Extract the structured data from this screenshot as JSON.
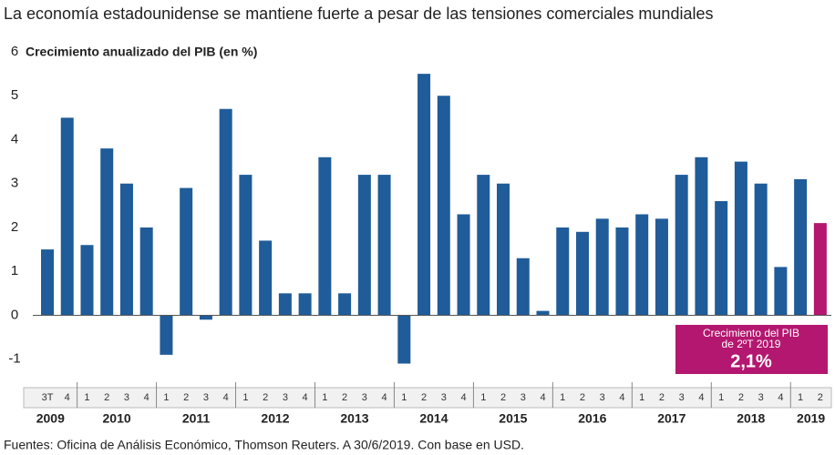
{
  "chart_data": {
    "type": "bar",
    "title": "La economía estadounidense se mantiene fuerte a pesar de las tensiones comerciales mundiales",
    "y_label": "Crecimiento anualizado del PIB (en %)",
    "groups": [
      {
        "label": "2009",
        "quarters": [
          "3T",
          "4"
        ]
      },
      {
        "label": "2010",
        "quarters": [
          "1",
          "2",
          "3",
          "4"
        ]
      },
      {
        "label": "2011",
        "quarters": [
          "1",
          "2",
          "3",
          "4"
        ]
      },
      {
        "label": "2012",
        "quarters": [
          "1",
          "2",
          "3",
          "4"
        ]
      },
      {
        "label": "2013",
        "quarters": [
          "1",
          "2",
          "3",
          "4"
        ]
      },
      {
        "label": "2014",
        "quarters": [
          "1",
          "2",
          "3",
          "4"
        ]
      },
      {
        "label": "2015",
        "quarters": [
          "1",
          "2",
          "3",
          "4"
        ]
      },
      {
        "label": "2016",
        "quarters": [
          "1",
          "2",
          "3",
          "4"
        ]
      },
      {
        "label": "2017",
        "quarters": [
          "1",
          "2",
          "3",
          "4"
        ]
      },
      {
        "label": "2018",
        "quarters": [
          "1",
          "2",
          "3",
          "4"
        ]
      },
      {
        "label": "2019",
        "quarters": [
          "1",
          "2"
        ]
      }
    ],
    "values": [
      1.5,
      4.5,
      1.6,
      3.8,
      3.0,
      2.0,
      -0.9,
      2.9,
      -0.1,
      4.7,
      3.2,
      1.7,
      0.5,
      0.5,
      3.6,
      0.5,
      3.2,
      3.2,
      -1.1,
      5.5,
      5.0,
      2.3,
      3.2,
      3.0,
      1.3,
      0.1,
      2.0,
      1.9,
      2.2,
      2.0,
      2.3,
      2.2,
      3.2,
      3.6,
      2.6,
      3.5,
      3.0,
      1.1,
      3.1,
      2.1
    ],
    "colors": [
      "#1f5c99",
      "#1f5c99",
      "#1f5c99",
      "#1f5c99",
      "#1f5c99",
      "#1f5c99",
      "#1f5c99",
      "#1f5c99",
      "#1f5c99",
      "#1f5c99",
      "#1f5c99",
      "#1f5c99",
      "#1f5c99",
      "#1f5c99",
      "#1f5c99",
      "#1f5c99",
      "#1f5c99",
      "#1f5c99",
      "#1f5c99",
      "#1f5c99",
      "#1f5c99",
      "#1f5c99",
      "#1f5c99",
      "#1f5c99",
      "#1f5c99",
      "#1f5c99",
      "#1f5c99",
      "#1f5c99",
      "#1f5c99",
      "#1f5c99",
      "#1f5c99",
      "#1f5c99",
      "#1f5c99",
      "#1f5c99",
      "#1f5c99",
      "#1f5c99",
      "#1f5c99",
      "#1f5c99",
      "#1f5c99",
      "#b3176f"
    ],
    "ylim": [
      -1.4,
      6
    ],
    "yticks": [
      -1,
      0,
      1,
      2,
      3,
      4,
      5,
      6
    ],
    "annotation": {
      "lines": [
        "Crecimiento del PIB",
        "de 2ºT 2019"
      ],
      "value_label": "2,1%",
      "color": "#b3176f"
    },
    "source": "Fuentes: Oficina de Análisis Económico, Thomson Reuters. A 30/6/2019. Con base en USD."
  }
}
